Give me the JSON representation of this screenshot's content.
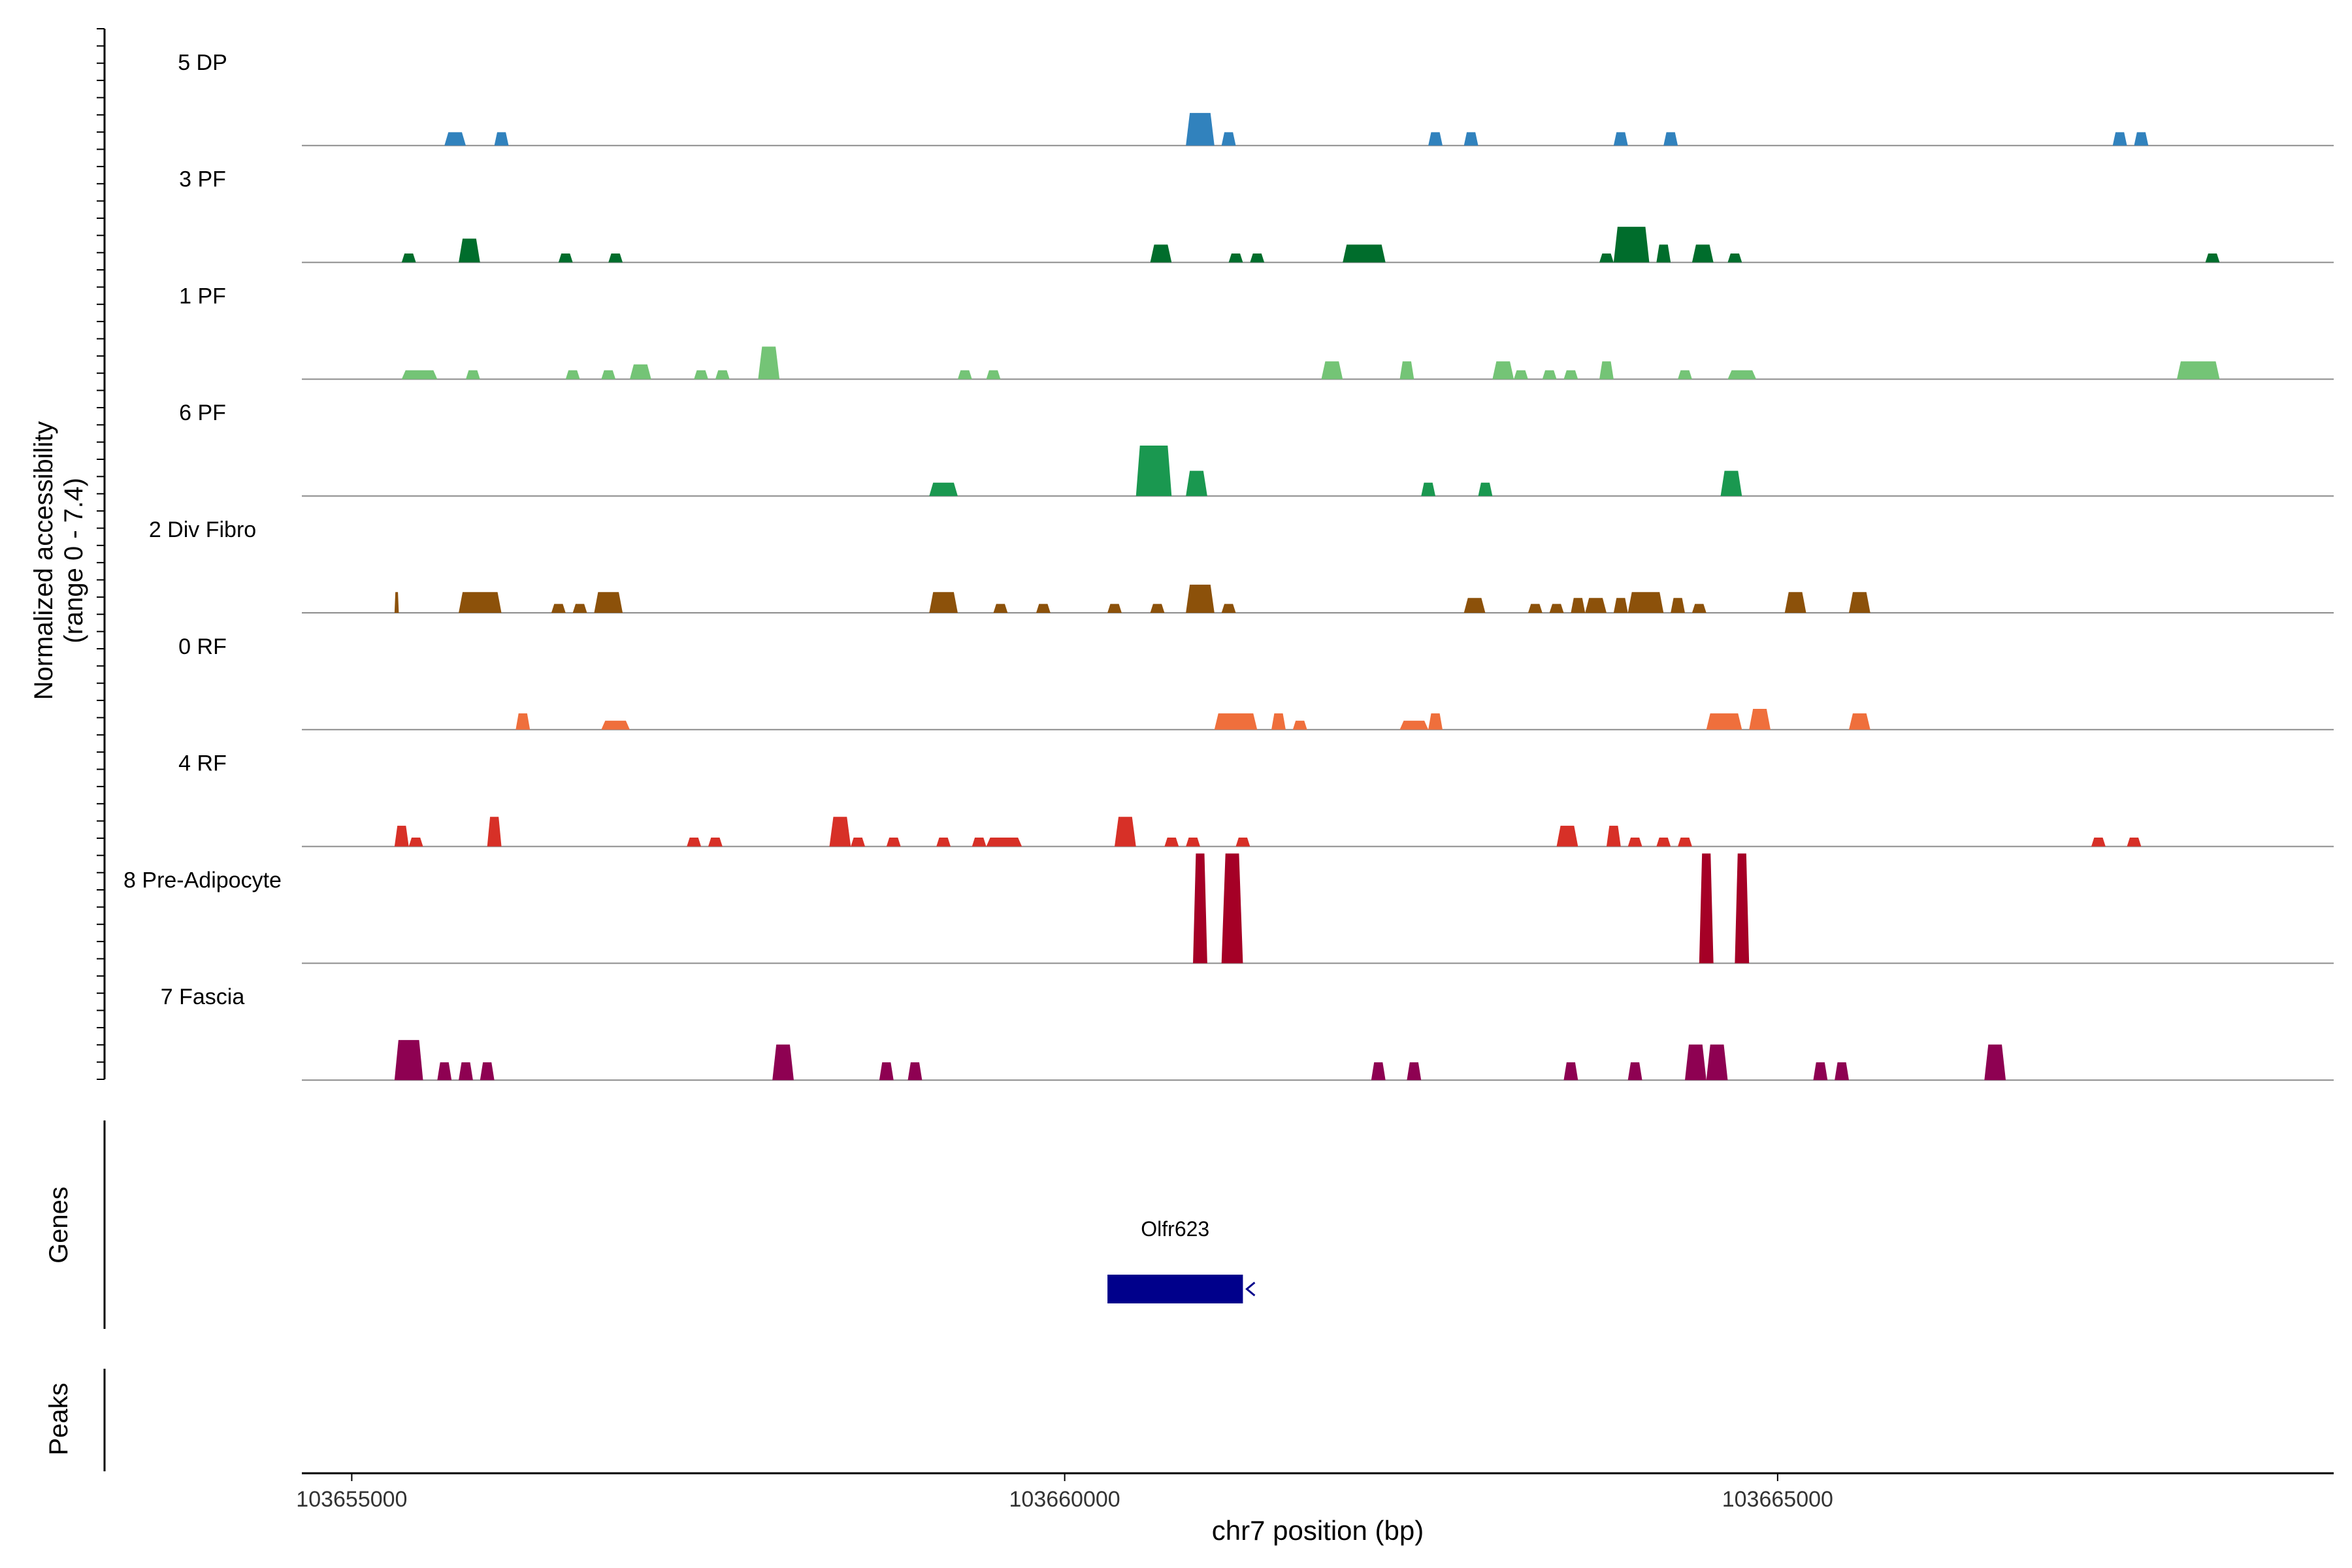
{
  "chart_data": {
    "type": "area",
    "ylabel_line1": "Normalized accessibility",
    "ylabel_line2": "(range 0 - 7.4)",
    "ylim": [
      0,
      7.4
    ],
    "xlabel": "chr7 position (bp)",
    "xlim": [
      103654650,
      103668900
    ],
    "xticks": [
      103655000,
      103660000,
      103665000
    ],
    "xtick_labels": [
      "103655000",
      "103660000",
      "103665000"
    ],
    "panel_labels": {
      "genes": "Genes",
      "peaks": "Peaks"
    },
    "tracks": [
      {
        "name": "5 DP",
        "color": "#3182bd",
        "peaks": [
          [
            103655650,
            103655800,
            0.9
          ],
          [
            103656000,
            103656100,
            0.9
          ],
          [
            103660850,
            103661050,
            2.2
          ],
          [
            103661100,
            103661200,
            0.9
          ],
          [
            103662550,
            103662650,
            0.9
          ],
          [
            103662800,
            103662900,
            0.9
          ],
          [
            103663850,
            103663950,
            0.9
          ],
          [
            103664200,
            103664300,
            0.9
          ],
          [
            103667350,
            103667450,
            0.9
          ],
          [
            103667500,
            103667600,
            0.9
          ]
        ]
      },
      {
        "name": "3 PF",
        "color": "#006d2c",
        "peaks": [
          [
            103655350,
            103655450,
            0.6
          ],
          [
            103655750,
            103655900,
            1.6
          ],
          [
            103656450,
            103656550,
            0.6
          ],
          [
            103656800,
            103656900,
            0.6
          ],
          [
            103660600,
            103660750,
            1.2
          ],
          [
            103661150,
            103661250,
            0.6
          ],
          [
            103661300,
            103661400,
            0.6
          ],
          [
            103661950,
            103662250,
            1.2
          ],
          [
            103663750,
            103663850,
            0.6
          ],
          [
            103663850,
            103664100,
            2.4
          ],
          [
            103664150,
            103664250,
            1.2
          ],
          [
            103664400,
            103664550,
            1.2
          ],
          [
            103664650,
            103664750,
            0.6
          ],
          [
            103668000,
            103668100,
            0.6
          ]
        ]
      },
      {
        "name": "1 PF",
        "color": "#74c476",
        "peaks": [
          [
            103655350,
            103655600,
            0.6
          ],
          [
            103655800,
            103655900,
            0.6
          ],
          [
            103656500,
            103656600,
            0.6
          ],
          [
            103656750,
            103656850,
            0.6
          ],
          [
            103656950,
            103657100,
            1.0
          ],
          [
            103657400,
            103657500,
            0.6
          ],
          [
            103657550,
            103657650,
            0.6
          ],
          [
            103657850,
            103658000,
            2.2
          ],
          [
            103659250,
            103659350,
            0.6
          ],
          [
            103659450,
            103659550,
            0.6
          ],
          [
            103661800,
            103661950,
            1.2
          ],
          [
            103662350,
            103662450,
            1.2
          ],
          [
            103663000,
            103663150,
            1.2
          ],
          [
            103663150,
            103663250,
            0.6
          ],
          [
            103663350,
            103663450,
            0.6
          ],
          [
            103663500,
            103663600,
            0.6
          ],
          [
            103663750,
            103663850,
            1.2
          ],
          [
            103664300,
            103664400,
            0.6
          ],
          [
            103664650,
            103664850,
            0.6
          ],
          [
            103667800,
            103668100,
            1.2
          ]
        ]
      },
      {
        "name": "6 PF",
        "color": "#1a9850",
        "peaks": [
          [
            103659050,
            103659250,
            0.9
          ],
          [
            103660500,
            103660750,
            3.4
          ],
          [
            103660850,
            103661000,
            1.7
          ],
          [
            103662500,
            103662600,
            0.9
          ],
          [
            103662900,
            103663000,
            0.9
          ],
          [
            103664600,
            103664750,
            1.7
          ]
        ]
      },
      {
        "name": "2 Div Fibro",
        "color": "#8c510a",
        "peaks": [
          [
            103655300,
            103655330,
            1.4
          ],
          [
            103655750,
            103656050,
            1.4
          ],
          [
            103656400,
            103656500,
            0.6
          ],
          [
            103656550,
            103656650,
            0.6
          ],
          [
            103656700,
            103656900,
            1.4
          ],
          [
            103659050,
            103659250,
            1.4
          ],
          [
            103659500,
            103659600,
            0.6
          ],
          [
            103659800,
            103659900,
            0.6
          ],
          [
            103660300,
            103660400,
            0.6
          ],
          [
            103660600,
            103660700,
            0.6
          ],
          [
            103660850,
            103661050,
            1.9
          ],
          [
            103661100,
            103661200,
            0.6
          ],
          [
            103662800,
            103662950,
            1.0
          ],
          [
            103663250,
            103663350,
            0.6
          ],
          [
            103663400,
            103663500,
            0.6
          ],
          [
            103663550,
            103663650,
            1.0
          ],
          [
            103663650,
            103663800,
            1.0
          ],
          [
            103663850,
            103663950,
            1.0
          ],
          [
            103663950,
            103664200,
            1.4
          ],
          [
            103664250,
            103664350,
            1.0
          ],
          [
            103664400,
            103664500,
            0.6
          ],
          [
            103665050,
            103665200,
            1.4
          ],
          [
            103665500,
            103665650,
            1.4
          ]
        ]
      },
      {
        "name": "0 RF",
        "color": "#ef6f3c",
        "peaks": [
          [
            103656150,
            103656250,
            1.1
          ],
          [
            103656750,
            103656950,
            0.6
          ],
          [
            103661050,
            103661350,
            1.1
          ],
          [
            103661450,
            103661550,
            1.1
          ],
          [
            103661600,
            103661700,
            0.6
          ],
          [
            103662350,
            103662550,
            0.6
          ],
          [
            103662550,
            103662650,
            1.1
          ],
          [
            103664500,
            103664750,
            1.1
          ],
          [
            103664800,
            103664950,
            1.4
          ],
          [
            103665500,
            103665650,
            1.1
          ]
        ]
      },
      {
        "name": "4 RF",
        "color": "#d73027",
        "peaks": [
          [
            103655300,
            103655400,
            1.4
          ],
          [
            103655400,
            103655500,
            0.6
          ],
          [
            103655950,
            103656050,
            2.0
          ],
          [
            103657350,
            103657450,
            0.6
          ],
          [
            103657500,
            103657600,
            0.6
          ],
          [
            103658350,
            103658500,
            2.0
          ],
          [
            103658500,
            103658600,
            0.6
          ],
          [
            103658750,
            103658850,
            0.6
          ],
          [
            103659100,
            103659200,
            0.6
          ],
          [
            103659350,
            103659450,
            0.6
          ],
          [
            103659450,
            103659700,
            0.6
          ],
          [
            103660350,
            103660500,
            2.0
          ],
          [
            103660700,
            103660800,
            0.6
          ],
          [
            103660850,
            103660950,
            0.6
          ],
          [
            103661200,
            103661300,
            0.6
          ],
          [
            103663450,
            103663600,
            1.4
          ],
          [
            103663800,
            103663900,
            1.4
          ],
          [
            103663950,
            103664050,
            0.6
          ],
          [
            103664150,
            103664250,
            0.6
          ],
          [
            103664300,
            103664400,
            0.6
          ],
          [
            103667200,
            103667300,
            0.6
          ],
          [
            103667450,
            103667550,
            0.6
          ]
        ]
      },
      {
        "name": "8 Pre-Adipocyte",
        "color": "#a50026",
        "peaks": [
          [
            103660900,
            103661000,
            7.4
          ],
          [
            103661100,
            103661250,
            7.4
          ],
          [
            103664450,
            103664550,
            7.4
          ],
          [
            103664700,
            103664800,
            7.4
          ]
        ]
      },
      {
        "name": "7 Fascia",
        "color": "#8e0152",
        "peaks": [
          [
            103655300,
            103655500,
            2.7
          ],
          [
            103655600,
            103655700,
            1.2
          ],
          [
            103655750,
            103655850,
            1.2
          ],
          [
            103655900,
            103656000,
            1.2
          ],
          [
            103657950,
            103658100,
            2.4
          ],
          [
            103658700,
            103658800,
            1.2
          ],
          [
            103658900,
            103659000,
            1.2
          ],
          [
            103662150,
            103662250,
            1.2
          ],
          [
            103662400,
            103662500,
            1.2
          ],
          [
            103663500,
            103663600,
            1.2
          ],
          [
            103663950,
            103664050,
            1.2
          ],
          [
            103664350,
            103664500,
            2.4
          ],
          [
            103664500,
            103664650,
            2.4
          ],
          [
            103665250,
            103665350,
            1.2
          ],
          [
            103665400,
            103665500,
            1.2
          ],
          [
            103666450,
            103666600,
            2.4
          ]
        ]
      }
    ],
    "genes": [
      {
        "name": "Olfr623",
        "start": 103660300,
        "end": 103661250,
        "strand": "-",
        "color": "#00008b"
      }
    ]
  }
}
